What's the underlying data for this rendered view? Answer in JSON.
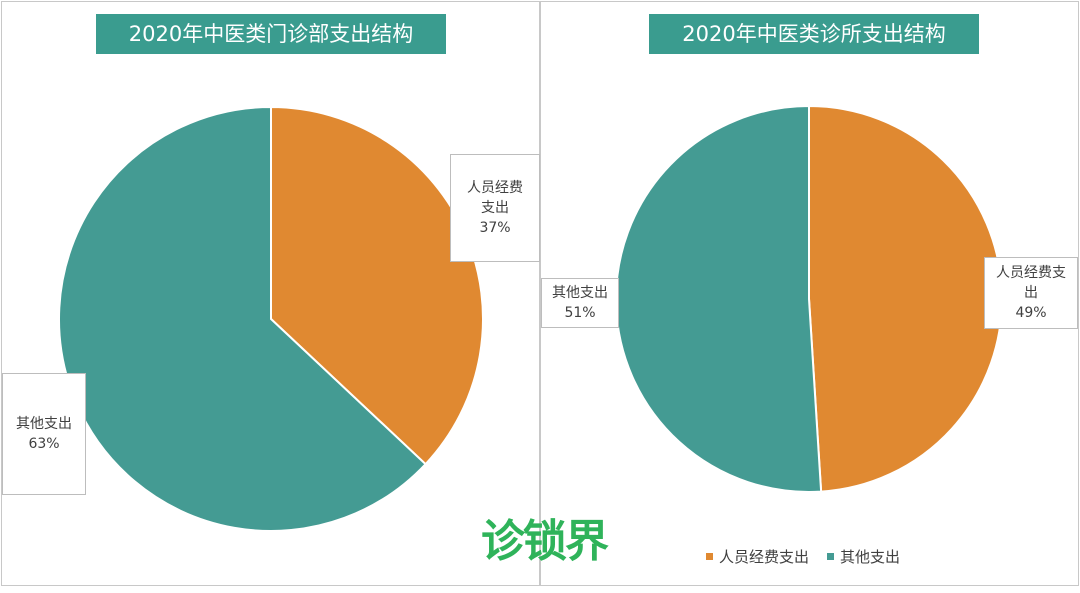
{
  "colors": {
    "orange": "#e08931",
    "teal": "#449b93",
    "title_bg": "#3a9c8f",
    "logo": "#2fb35a"
  },
  "logo_text": "诊锁界",
  "legend": [
    {
      "label": "人员经费支出",
      "color": "#e08931"
    },
    {
      "label": "其他支出",
      "color": "#449b93"
    }
  ],
  "chart_data": [
    {
      "type": "pie",
      "title": "2020年中医类门诊部支出结构",
      "slices": [
        {
          "label_line1": "人员经费",
          "label_line2": "支出",
          "value": 37,
          "value_text": "37%",
          "color": "#e08931"
        },
        {
          "label_line1": "其他支出",
          "label_line2": "",
          "value": 63,
          "value_text": "63%",
          "color": "#449b93"
        }
      ]
    },
    {
      "type": "pie",
      "title": "2020年中医类诊所支出结构",
      "slices": [
        {
          "label_line1": "人员经费支",
          "label_line2": "出",
          "value": 49,
          "value_text": "49%",
          "color": "#e08931"
        },
        {
          "label_line1": "其他支出",
          "label_line2": "",
          "value": 51,
          "value_text": "51%",
          "color": "#449b93"
        }
      ]
    }
  ]
}
